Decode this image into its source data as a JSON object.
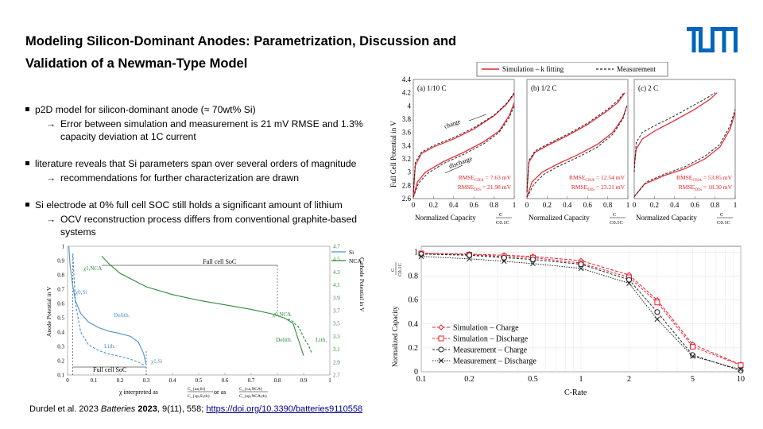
{
  "slide": {
    "title_line1": "Modeling Silicon-Dominant Anodes: Parametrization, Discussion and",
    "title_line2": "Validation of a Newman-Type Model",
    "logo_text": "TUM",
    "logo_color": "#0065bd"
  },
  "bullets": [
    {
      "text": "p2D model for silicon-dominant  anode (≈ 70wt% Si)",
      "sub": [
        "Error between  simulation and measurement is 21 mV RMSE  and 1.3%",
        "capacity deviation at 1C current"
      ]
    },
    {
      "text": "literature reveals that Si parameters span over several orders of magnitude",
      "sub": [
        "recommendations for further characterization are drawn"
      ]
    },
    {
      "text": "Si electrode at 0% full cell SOC still holds a significant amount of lithium",
      "sub": [
        "OCV reconstruction process differs from conventional graphite-based",
        "systems"
      ]
    }
  ],
  "arrow_glyph": "→",
  "citation": {
    "authors": "Durdel et al. 2023 ",
    "journal": "Batteries",
    "year": " 2023",
    "rest": ", 9(11), 558; ",
    "link": "https://doi.org/10.3390/batteries9110558"
  },
  "colors": {
    "sim": "#e8202a",
    "meas": "#222222",
    "si": "#4a90d0",
    "nca": "#2f8a3a"
  },
  "chart_data": [
    {
      "type": "line",
      "description": "Half-cell potentials vs stoichiometry",
      "xlabel": "χ interpreted as",
      "xlabel_frac1_num": "C_{an,lit}",
      "xlabel_frac1_den": "C_{sp,Si,th}",
      "xlabel_mid": " or as ",
      "xlabel_frac2_num": "C_{ca,NCA}",
      "xlabel_frac2_den": "C_{sp,NCA,th}",
      "ylabel_left": "Anode Potential in V",
      "ylabel_right": "Cathode Potential in V",
      "x_ticks": [
        "0",
        "0.1",
        "0.2",
        "0.3",
        "0.4",
        "0.5",
        "0.6",
        "0.7",
        "0.8",
        "0.9",
        "1"
      ],
      "y_left_ticks": [
        "0.1",
        "0.2",
        "0.3",
        "0.4",
        "0.5",
        "0.6",
        "0.7",
        "0.8",
        "0.9",
        "1"
      ],
      "y_right_ticks": [
        "2.7",
        "2.9",
        "3.1",
        "3.3",
        "3.5",
        "3.7",
        "3.9",
        "4.1",
        "4.3",
        "4.5",
        "4.7"
      ],
      "xlim": [
        0,
        1
      ],
      "ylim_left": [
        0.1,
        1.0
      ],
      "ylim_right": [
        2.7,
        4.7
      ],
      "legend": [
        "Si",
        "NCA"
      ],
      "annotations": {
        "full_soc_top": "Full cell SoC",
        "full_soc_bottom": "Full cell SoC",
        "delith": "Delith.",
        "lith": "Lith.",
        "x1nca": "χ1,NCA",
        "x0nca": "χ0,NCA",
        "x0si": "χ0,Si",
        "x1si": "χ1,Si",
        "delith_nca": "Delith.",
        "lith_nca": "Lith."
      },
      "si_delith": {
        "x": [
          0.005,
          0.01,
          0.02,
          0.03,
          0.05,
          0.08,
          0.12,
          0.16,
          0.2,
          0.24,
          0.27,
          0.29,
          0.3
        ],
        "y": [
          1.0,
          0.86,
          0.72,
          0.62,
          0.53,
          0.47,
          0.43,
          0.405,
          0.39,
          0.37,
          0.33,
          0.25,
          0.17
        ]
      },
      "si_lith": {
        "x": [
          0.02,
          0.03,
          0.05,
          0.08,
          0.12,
          0.16,
          0.2,
          0.24,
          0.27,
          0.29
        ],
        "y": [
          0.95,
          0.6,
          0.4,
          0.31,
          0.27,
          0.245,
          0.23,
          0.21,
          0.19,
          0.17
        ]
      },
      "nca_delith": {
        "x": [
          0.13,
          0.16,
          0.2,
          0.3,
          0.4,
          0.5,
          0.6,
          0.7,
          0.78,
          0.83,
          0.86,
          0.88,
          0.9
        ],
        "y": [
          4.55,
          4.42,
          4.28,
          4.07,
          3.95,
          3.86,
          3.79,
          3.72,
          3.65,
          3.58,
          3.5,
          3.25,
          3.0
        ]
      },
      "nca_lith": {
        "x": [
          0.84,
          0.86,
          0.87,
          0.88,
          0.89,
          0.9,
          0.92,
          0.93
        ],
        "y": [
          3.57,
          3.53,
          3.48,
          3.45,
          3.38,
          3.28,
          3.15,
          3.05
        ]
      }
    },
    {
      "type": "line",
      "description": "Full cell potential vs normalized capacity at three C-rates",
      "legend": [
        "Simulation – k fitting",
        "Measurement"
      ],
      "ylabel": "Full Cell Potential in V",
      "xlabel": "Normalized Capacity",
      "xlabel_frac_num": "C",
      "xlabel_frac_den": "C0.1C",
      "y_ticks": [
        "2.6",
        "2.8",
        "3",
        "3.2",
        "3.4",
        "3.6",
        "3.8",
        "4",
        "4.2",
        "4.4"
      ],
      "x_ticks": [
        "0",
        "0.2",
        "0.4",
        "0.6",
        "0.8",
        "1"
      ],
      "ylim": [
        2.6,
        4.4
      ],
      "xlim": [
        0,
        1
      ],
      "panels": [
        {
          "label": "(a)  1/10 C",
          "rmse_cha": "RMSE",
          "rmse_cha_sub": "CHA",
          "rmse_cha_val": " =  7.63 mV",
          "rmse_dis": "RMSE",
          "rmse_dis_sub": "DIS",
          "rmse_dis_val": " = 21.98 mV",
          "arrow_charge": "charge",
          "arrow_discharge": "discharge"
        },
        {
          "label": "(b)  1/2 C",
          "rmse_cha": "RMSE",
          "rmse_cha_sub": "CHA",
          "rmse_cha_val": " = 12.54 mV",
          "rmse_dis": "RMSE",
          "rmse_dis_sub": "DIS",
          "rmse_dis_val": " = 23.21 mV"
        },
        {
          "label": "(c)  2 C",
          "rmse_cha": "RMSE",
          "rmse_cha_sub": "CHA",
          "rmse_cha_val": " = 53.85 mV",
          "rmse_dis": "RMSE",
          "rmse_dis_sub": "DIS",
          "rmse_dis_val": " = 18.30 mV"
        }
      ]
    },
    {
      "type": "line",
      "description": "Normalized capacity vs C-rate",
      "xlabel": "C-Rate",
      "ylabel": "Normalized Capacity",
      "ylabel_frac_num": "C",
      "ylabel_frac_den": "C0.1C",
      "x": [
        0.1,
        0.2,
        0.33,
        0.5,
        1,
        2,
        3,
        5,
        10
      ],
      "x_ticks": [
        "0.1",
        "0.2",
        "0.5",
        "1",
        "2",
        "5",
        "10"
      ],
      "y_ticks": [
        "0",
        "0.2",
        "0.4",
        "0.6",
        "0.8",
        "1"
      ],
      "ylim": [
        0,
        1.05
      ],
      "series": [
        {
          "name": "Simulation – Charge",
          "values": [
            0.99,
            0.985,
            0.975,
            0.965,
            0.93,
            0.81,
            0.6,
            0.23,
            0.06
          ]
        },
        {
          "name": "Simulation – Discharge",
          "values": [
            0.99,
            0.98,
            0.965,
            0.955,
            0.91,
            0.79,
            0.58,
            0.21,
            0.055
          ]
        },
        {
          "name": "Measurement – Charge",
          "values": [
            0.985,
            0.975,
            0.955,
            0.94,
            0.9,
            0.77,
            0.5,
            0.14,
            0.01
          ]
        },
        {
          "name": "Measurement – Discharge",
          "values": [
            0.965,
            0.945,
            0.925,
            0.905,
            0.865,
            0.74,
            0.44,
            0.13,
            0.02
          ]
        }
      ]
    }
  ]
}
